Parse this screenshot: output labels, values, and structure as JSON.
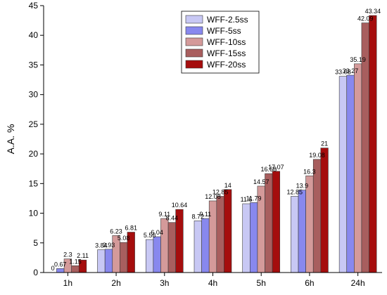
{
  "chart_data": {
    "type": "bar",
    "ylabel": "A.A. %",
    "xlabel": "",
    "ylim": [
      0,
      45
    ],
    "yticks": [
      0,
      5,
      10,
      15,
      20,
      25,
      30,
      35,
      40,
      45
    ],
    "categories": [
      "1h",
      "2h",
      "3h",
      "4h",
      "5h",
      "6h",
      "24h"
    ],
    "legend_position": "top-center",
    "grid": false,
    "series": [
      {
        "name": "WFF-2.5ss",
        "color": "#c8c8f4",
        "values": [
          0,
          3.84,
          5.56,
          8.72,
          11.6,
          12.85,
          33.08
        ]
      },
      {
        "name": "WFF-5ss",
        "color": "#8888ee",
        "values": [
          0.67,
          3.93,
          6.04,
          9.11,
          11.79,
          13.9,
          33.27
        ]
      },
      {
        "name": "WFF-10ss",
        "color": "#d49a9a",
        "values": [
          2.3,
          6.23,
          9.11,
          12.08,
          14.57,
          16.3,
          35.19
        ]
      },
      {
        "name": "WFF-15ss",
        "color": "#a85e5e",
        "values": [
          1.15,
          5.08,
          8.44,
          12.85,
          16.68,
          19.08,
          42.09
        ]
      },
      {
        "name": "WFF-20ss",
        "color": "#a50d0d",
        "values": [
          2.11,
          6.81,
          10.64,
          14,
          17.07,
          21,
          43.34
        ]
      }
    ]
  }
}
